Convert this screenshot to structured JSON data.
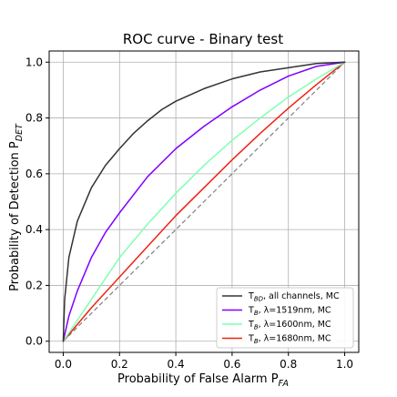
{
  "chart_data": {
    "type": "line",
    "title": "ROC curve - Binary test",
    "xlabel": {
      "main": "Probability of False Alarm P",
      "sub": "FA"
    },
    "ylabel": {
      "main": "Probability of Detection P",
      "sub": "DET"
    },
    "xlim": [
      -0.05,
      1.05
    ],
    "ylim": [
      -0.04,
      1.04
    ],
    "xticks": [
      0.0,
      0.2,
      0.4,
      0.6,
      0.8,
      1.0
    ],
    "yticks": [
      0.0,
      0.2,
      0.4,
      0.6,
      0.8,
      1.0
    ],
    "xtick_labels": [
      "0.0",
      "0.2",
      "0.4",
      "0.6",
      "0.8",
      "1.0"
    ],
    "ytick_labels": [
      "0.0",
      "0.2",
      "0.4",
      "0.6",
      "0.8",
      "1.0"
    ],
    "grid": true,
    "legend_position": "lower-right",
    "chance_line": {
      "color": "#808080",
      "style": "dashed",
      "x": [
        0,
        1
      ],
      "y": [
        0,
        1
      ]
    },
    "series": [
      {
        "name": "T_BD, all channels, MC",
        "legend": {
          "base": "T",
          "sub": "BD",
          "rest": ", all channels, MC"
        },
        "color": "#333333",
        "x": [
          0,
          0.005,
          0.02,
          0.05,
          0.1,
          0.15,
          0.2,
          0.25,
          0.3,
          0.35,
          0.4,
          0.5,
          0.6,
          0.7,
          0.8,
          0.9,
          1.0
        ],
        "y": [
          0,
          0.15,
          0.3,
          0.43,
          0.55,
          0.63,
          0.69,
          0.745,
          0.79,
          0.83,
          0.86,
          0.905,
          0.94,
          0.965,
          0.98,
          0.995,
          1.0
        ]
      },
      {
        "name": "T_B, λ=1519nm, MC",
        "legend": {
          "base": "T",
          "sub": "B",
          "rest": ", λ=1519nm, MC"
        },
        "color": "#7f00ff",
        "x": [
          0,
          0.02,
          0.05,
          0.1,
          0.15,
          0.2,
          0.3,
          0.4,
          0.5,
          0.6,
          0.7,
          0.8,
          0.9,
          1.0
        ],
        "y": [
          0,
          0.09,
          0.18,
          0.3,
          0.39,
          0.46,
          0.59,
          0.69,
          0.77,
          0.84,
          0.9,
          0.95,
          0.985,
          1.0
        ]
      },
      {
        "name": "T_B, λ=1600nm, MC",
        "legend": {
          "base": "T",
          "sub": "B",
          "rest": ", λ=1600nm, MC"
        },
        "color": "#7fffb2",
        "x": [
          0,
          0.1,
          0.2,
          0.3,
          0.4,
          0.5,
          0.6,
          0.7,
          0.8,
          0.9,
          1.0
        ],
        "y": [
          0,
          0.15,
          0.3,
          0.42,
          0.53,
          0.63,
          0.72,
          0.8,
          0.875,
          0.94,
          1.0
        ]
      },
      {
        "name": "T_B, λ=1680nm, MC",
        "legend": {
          "base": "T",
          "sub": "B",
          "rest": ", λ=1680nm, MC"
        },
        "color": "#ee2211",
        "x": [
          0,
          0.1,
          0.2,
          0.3,
          0.4,
          0.5,
          0.6,
          0.7,
          0.8,
          0.9,
          1.0
        ],
        "y": [
          0,
          0.12,
          0.23,
          0.34,
          0.45,
          0.55,
          0.65,
          0.745,
          0.835,
          0.92,
          1.0
        ]
      }
    ]
  }
}
